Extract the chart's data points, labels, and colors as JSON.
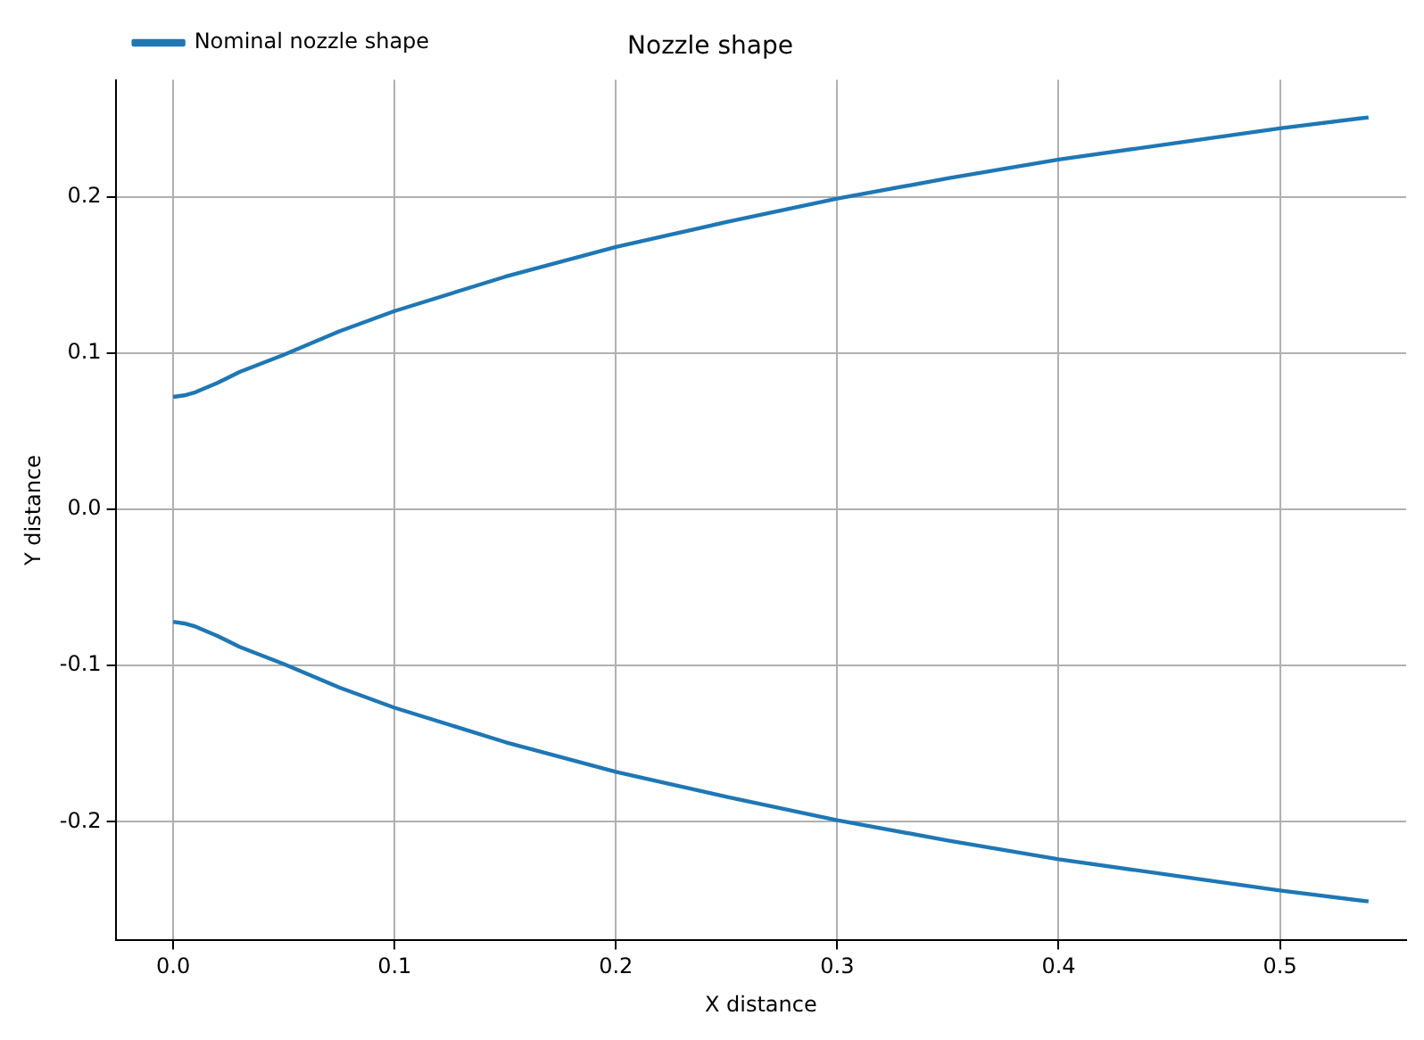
{
  "chart_data": {
    "type": "line",
    "title": "Nozzle shape",
    "xlabel": "X distance",
    "ylabel": "Y distance",
    "x": [
      0,
      0.005,
      0.01,
      0.015,
      0.02,
      0.03,
      0.05,
      0.075,
      0.1,
      0.15,
      0.2,
      0.25,
      0.3,
      0.35,
      0.4,
      0.45,
      0.5,
      0.54
    ],
    "series": [
      {
        "name": "Nominal nozzle shape",
        "color": "#1f77b4",
        "values": [
          0.072,
          0.073,
          0.075,
          0.078,
          0.081,
          0.088,
          0.099,
          0.114,
          0.127,
          0.149,
          0.168,
          0.184,
          0.199,
          0.212,
          0.224,
          0.234,
          0.244,
          0.251
        ]
      },
      {
        "color": "#1f77b4",
        "values": [
          -0.072,
          -0.073,
          -0.075,
          -0.078,
          -0.081,
          -0.088,
          -0.099,
          -0.114,
          -0.127,
          -0.149,
          -0.168,
          -0.184,
          -0.199,
          -0.212,
          -0.224,
          -0.234,
          -0.244,
          -0.251
        ]
      }
    ],
    "xlim": [
      -0.026,
      0.557
    ],
    "ylim": [
      -0.276,
      0.275
    ],
    "xticks": [
      {
        "value": 0,
        "label": "0.0"
      },
      0.1,
      0.2,
      0.3,
      0.4,
      0.5
    ],
    "yticks": [
      -0.2,
      -0.1,
      {
        "value": 0,
        "label": "0.0"
      },
      0.1,
      0.2
    ],
    "grid": true,
    "legend": "top left",
    "line_style": "solid",
    "marker": "none"
  }
}
